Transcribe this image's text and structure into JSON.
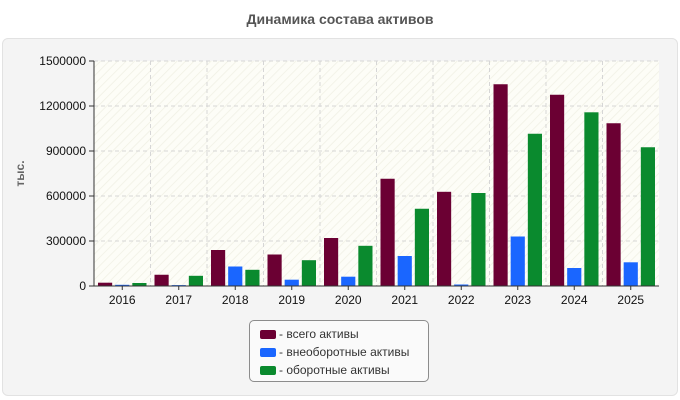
{
  "title": "Динамика состава активов",
  "chart_data": {
    "type": "bar",
    "title": "Динамика состава активов",
    "xlabel": "",
    "ylabel": "тыс.",
    "ylim": [
      0,
      1500000
    ],
    "yticks": [
      "0",
      "300000",
      "600000",
      "900000",
      "1200000",
      "1500000"
    ],
    "categories": [
      "2016",
      "2017",
      "2018",
      "2019",
      "2020",
      "2021",
      "2022",
      "2023",
      "2024",
      "2025"
    ],
    "grid": true,
    "legend_position": "bottom-center",
    "series": [
      {
        "name": "- всего активы",
        "color": "#6b0033",
        "values": [
          22000,
          75000,
          240000,
          210000,
          320000,
          715000,
          628000,
          1345000,
          1275000,
          1085000
        ]
      },
      {
        "name": "- внеоборотные активы",
        "color": "#1a66ff",
        "values": [
          8000,
          6000,
          130000,
          42000,
          62000,
          200000,
          10000,
          330000,
          120000,
          158000
        ]
      },
      {
        "name": "- оборотные активы",
        "color": "#0a8a2e",
        "values": [
          20000,
          68000,
          108000,
          172000,
          268000,
          515000,
          620000,
          1015000,
          1158000,
          925000
        ]
      }
    ]
  }
}
